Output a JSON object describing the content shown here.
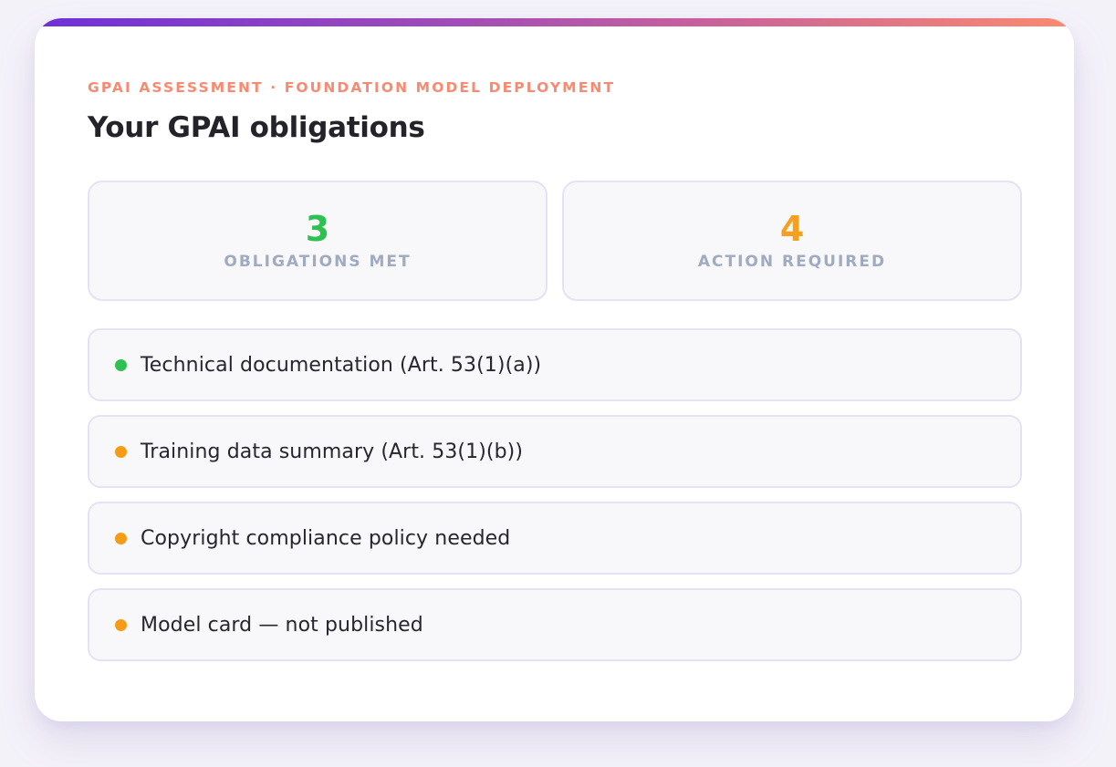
{
  "header": {
    "eyebrow": "GPAI ASSESSMENT · FOUNDATION MODEL DEPLOYMENT",
    "title": "Your GPAI obligations"
  },
  "stats": [
    {
      "value": "3",
      "label": "OBLIGATIONS MET",
      "color": "#2fc052"
    },
    {
      "value": "4",
      "label": "ACTION REQUIRED",
      "color": "#f5a01e"
    }
  ],
  "obligations": [
    {
      "status": "met",
      "dot_color": "#2fc052",
      "label": "Technical documentation (Art. 53(1)(a))"
    },
    {
      "status": "action",
      "dot_color": "#f59c17",
      "label": "Training data summary (Art. 53(1)(b))"
    },
    {
      "status": "action",
      "dot_color": "#f59c17",
      "label": "Copyright compliance policy needed"
    },
    {
      "status": "action",
      "dot_color": "#f59c17",
      "label": "Model card — not published"
    }
  ],
  "colors": {
    "accent_gradient_start": "#6d2fd8",
    "accent_gradient_mid": "#c9619b",
    "accent_gradient_end": "#fb8a6e",
    "eyebrow_text": "#f98a72",
    "met_green": "#2fc052",
    "action_orange": "#f5a01e",
    "muted_label": "#a0abc0"
  }
}
